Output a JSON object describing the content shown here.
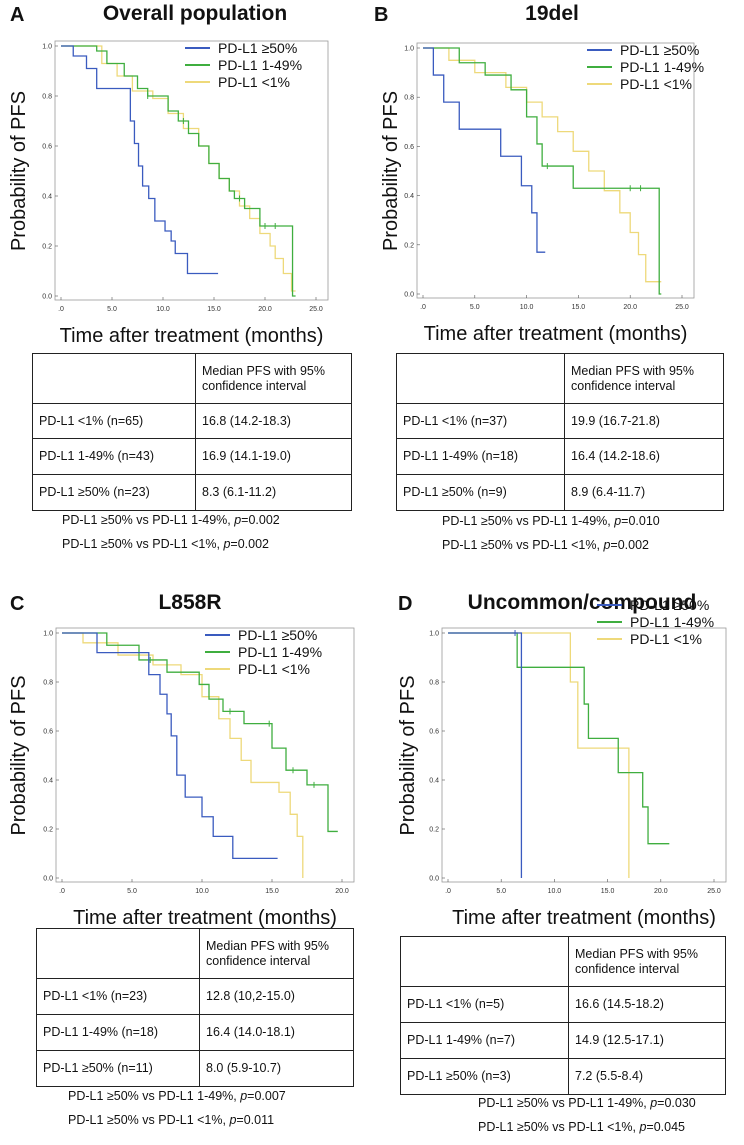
{
  "colors": {
    "high": "#3a5bbf",
    "mid": "#3fae3f",
    "low": "#eed97a",
    "axis": "#555555"
  },
  "common": {
    "ylabel": "Probability of PFS",
    "xlabel": "Time after treatment (months)",
    "table_header": "Median PFS  with 95% confidence interval",
    "table_header_line1": "Median PFS  with 95%",
    "table_header_line2": "confidence interval",
    "p_suffix_label": "p"
  },
  "panels": {
    "A": {
      "letter": "A",
      "title": "Overall population",
      "rows": [
        {
          "group": "PD-L1 <1% (n=65)",
          "median": "16.8 (14.2-18.3)"
        },
        {
          "group": "PD-L1 1-49% (n=43)",
          "median": "16.9 (14.1-19.0)"
        },
        {
          "group": "PD-L1 ≥50% (n=23)",
          "median": "8.3 (6.1-11.2)"
        }
      ],
      "pvalues": [
        {
          "prefix": "PD-L1 ≥50% vs PD-L1 1-49%, ",
          "value": "=0.002"
        },
        {
          "prefix": "PD-L1 ≥50% vs PD-L1 <1%, ",
          "value": "=0.002"
        }
      ]
    },
    "B": {
      "letter": "B",
      "title": "19del",
      "rows": [
        {
          "group": "PD-L1 <1% (n=37)",
          "median": "19.9 (16.7-21.8)"
        },
        {
          "group": "PD-L1 1-49% (n=18)",
          "median": "16.4 (14.2-18.6)"
        },
        {
          "group": "PD-L1 ≥50% (n=9)",
          "median": "8.9 (6.4-11.7)"
        }
      ],
      "pvalues": [
        {
          "prefix": "PD-L1 ≥50% vs PD-L1 1-49%, ",
          "value": "=0.010"
        },
        {
          "prefix": "PD-L1 ≥50% vs PD-L1 <1%, ",
          "value": "=0.002"
        }
      ]
    },
    "C": {
      "letter": "C",
      "title": "L858R",
      "rows": [
        {
          "group": "PD-L1 <1% (n=23)",
          "median": "12.8 (10,2-15.0)"
        },
        {
          "group": "PD-L1 1-49% (n=18)",
          "median": "16.4 (14.0-18.1)"
        },
        {
          "group": "PD-L1 ≥50% (n=11)",
          "median": "8.0 (5.9-10.7)"
        }
      ],
      "pvalues": [
        {
          "prefix": "PD-L1 ≥50% vs PD-L1 1-49%, ",
          "value": "=0.007"
        },
        {
          "prefix": "PD-L1 ≥50% vs PD-L1 <1%, ",
          "value": "=0.011"
        }
      ]
    },
    "D": {
      "letter": "D",
      "title": "Uncommon/compound",
      "rows": [
        {
          "group": "PD-L1 <1% (n=5)",
          "median": "16.6 (14.5-18.2)"
        },
        {
          "group": "PD-L1 1-49% (n=7)",
          "median": "14.9 (12.5-17.1)"
        },
        {
          "group": "PD-L1 ≥50% (n=3)",
          "median": "7.2 (5.5-8.4)"
        }
      ],
      "pvalues": [
        {
          "prefix": "PD-L1 ≥50% vs PD-L1 1-49%, ",
          "value": "=0.030"
        },
        {
          "prefix": "PD-L1 ≥50% vs PD-L1 <1%, ",
          "value": "=0.045"
        }
      ]
    }
  },
  "chart_data": [
    {
      "panel": "A",
      "type": "line",
      "step": true,
      "title": "Overall population",
      "xlabel": "Time after treatment (months)",
      "ylabel": "Probability of PFS",
      "xlim": [
        0,
        25
      ],
      "ylim": [
        0,
        1
      ],
      "xticks": [
        ".0",
        "5.0",
        "10.0",
        "15.0",
        "20.0",
        "25.0"
      ],
      "yticks": [
        "0.0",
        "0.2",
        "0.4",
        "0.6",
        "0.8",
        "1.0"
      ],
      "legend": [
        "PD-L1 ≥50%",
        "PD-L1 1-49%",
        "PD-L1 <1%"
      ],
      "series": [
        {
          "name": "PD-L1 ≥50%",
          "color": "#3a5bbf",
          "x": [
            0,
            1.2,
            2.5,
            3.5,
            6.2,
            6.8,
            7.2,
            7.6,
            8.0,
            8.6,
            9.2,
            10.2,
            10.8,
            11.2,
            12.4,
            15.4
          ],
          "y": [
            1,
            0.96,
            0.91,
            0.83,
            0.83,
            0.7,
            0.61,
            0.52,
            0.44,
            0.39,
            0.3,
            0.26,
            0.22,
            0.17,
            0.09,
            0.09
          ]
        },
        {
          "name": "PD-L1 1-49%",
          "color": "#3fae3f",
          "x": [
            0,
            3.5,
            4.5,
            6.2,
            7.5,
            8.5,
            10.5,
            11.5,
            12.5,
            13.5,
            14.5,
            15.5,
            16.5,
            17.0,
            18.0,
            19.5,
            20.5,
            22.7,
            23.0
          ],
          "y": [
            1,
            0.98,
            0.93,
            0.88,
            0.83,
            0.8,
            0.74,
            0.7,
            0.65,
            0.6,
            0.53,
            0.47,
            0.42,
            0.39,
            0.35,
            0.28,
            0.28,
            0.0,
            0.0
          ],
          "censored_x": [
            8.5,
            12.0,
            17.5,
            20.0,
            21.0
          ]
        },
        {
          "name": "PD-L1 <1%",
          "color": "#eed97a",
          "x": [
            0,
            4.0,
            5.5,
            7.0,
            9.0,
            10.5,
            12.0,
            13.5,
            14.5,
            15.5,
            16.5,
            17.5,
            18.5,
            19.5,
            20.5,
            21.0,
            21.8,
            22.6,
            23.0
          ],
          "y": [
            1,
            0.93,
            0.88,
            0.82,
            0.79,
            0.73,
            0.67,
            0.6,
            0.53,
            0.47,
            0.42,
            0.36,
            0.31,
            0.25,
            0.2,
            0.15,
            0.09,
            0.02,
            0.02
          ]
        }
      ]
    },
    {
      "panel": "B",
      "type": "line",
      "step": true,
      "title": "19del",
      "xlabel": "Time after treatment (months)",
      "ylabel": "Probability of PFS",
      "xlim": [
        0,
        25
      ],
      "ylim": [
        0,
        1
      ],
      "xticks": [
        ".0",
        "5.0",
        "10.0",
        "15.0",
        "20.0",
        "25.0"
      ],
      "yticks": [
        "0.0",
        "0.2",
        "0.4",
        "0.6",
        "0.8",
        "1.0"
      ],
      "legend": [
        "PD-L1 ≥50%",
        "PD-L1 1-49%",
        "PD-L1 <1%"
      ],
      "series": [
        {
          "name": "PD-L1 ≥50%",
          "color": "#3a5bbf",
          "x": [
            0,
            1.0,
            2.0,
            3.5,
            7.5,
            9.5,
            10.5,
            11.0,
            11.8
          ],
          "y": [
            1,
            0.89,
            0.78,
            0.67,
            0.56,
            0.44,
            0.33,
            0.17,
            0.17
          ]
        },
        {
          "name": "PD-L1 1-49%",
          "color": "#3fae3f",
          "x": [
            0,
            3.5,
            6.0,
            8.5,
            10.0,
            11.0,
            11.5,
            14.5,
            22.8,
            23.0
          ],
          "y": [
            1,
            0.94,
            0.89,
            0.83,
            0.72,
            0.61,
            0.52,
            0.43,
            0.0,
            0.0
          ],
          "censored_x": [
            12.0,
            20.0,
            21.0
          ]
        },
        {
          "name": "PD-L1 <1%",
          "color": "#eed97a",
          "x": [
            0,
            2.5,
            5.0,
            8.0,
            10.0,
            11.5,
            13.0,
            14.5,
            16.0,
            17.5,
            19.0,
            20.0,
            20.8,
            21.5,
            23.0
          ],
          "y": [
            1,
            0.95,
            0.9,
            0.84,
            0.78,
            0.72,
            0.66,
            0.58,
            0.5,
            0.42,
            0.33,
            0.25,
            0.16,
            0.05,
            0.05
          ]
        }
      ]
    },
    {
      "panel": "C",
      "type": "line",
      "step": true,
      "title": "L858R",
      "xlabel": "Time after treatment (months)",
      "ylabel": "Probability of PFS",
      "xlim": [
        0,
        20
      ],
      "ylim": [
        0,
        1
      ],
      "xticks": [
        ".0",
        "5.0",
        "10.0",
        "15.0",
        "20.0"
      ],
      "yticks": [
        "0.0",
        "0.2",
        "0.4",
        "0.6",
        "0.8",
        "1.0"
      ],
      "legend": [
        "PD-L1 ≥50%",
        "PD-L1 1-49%",
        "PD-L1 <1%"
      ],
      "series": [
        {
          "name": "PD-L1 ≥50%",
          "color": "#3a5bbf",
          "x": [
            0,
            2.5,
            5.2,
            6.2,
            7.0,
            7.5,
            7.8,
            8.2,
            8.8,
            10.0,
            10.8,
            12.2,
            15.4
          ],
          "y": [
            1,
            0.92,
            0.92,
            0.83,
            0.75,
            0.67,
            0.58,
            0.42,
            0.33,
            0.25,
            0.17,
            0.08,
            0.08
          ]
        },
        {
          "name": "PD-L1 1-49%",
          "color": "#3fae3f",
          "x": [
            0,
            3.2,
            5.5,
            7.5,
            9.8,
            10.5,
            11.5,
            13.0,
            15.0,
            16.0,
            17.5,
            19.0,
            19.7
          ],
          "y": [
            1,
            0.95,
            0.89,
            0.84,
            0.79,
            0.73,
            0.68,
            0.63,
            0.53,
            0.44,
            0.38,
            0.19,
            0.19
          ],
          "censored_x": [
            6.3,
            12.0,
            14.8,
            16.5,
            18.0
          ]
        },
        {
          "name": "PD-L1 <1%",
          "color": "#eed97a",
          "x": [
            0,
            1.5,
            4.0,
            6.5,
            8.5,
            10.0,
            11.2,
            12.0,
            12.8,
            13.5,
            15.5,
            16.3,
            16.8,
            17.2
          ],
          "y": [
            1,
            0.96,
            0.91,
            0.87,
            0.83,
            0.74,
            0.65,
            0.57,
            0.48,
            0.39,
            0.35,
            0.26,
            0.17,
            0.0
          ]
        }
      ]
    },
    {
      "panel": "D",
      "type": "line",
      "step": true,
      "title": "Uncommon/compound",
      "xlabel": "Time after treatment (months)",
      "ylabel": "Probability of PFS",
      "xlim": [
        0,
        25
      ],
      "ylim": [
        0,
        1
      ],
      "xticks": [
        ".0",
        "5.0",
        "10.0",
        "15.0",
        "20.0",
        "25.0"
      ],
      "yticks": [
        "0.0",
        "0.2",
        "0.4",
        "0.6",
        "0.8",
        "1.0"
      ],
      "legend": [
        "PD-L1 ≥50%",
        "PD-L1 1-49%",
        "PD-L1 <1%"
      ],
      "series": [
        {
          "name": "PD-L1 ≥50%",
          "color": "#3a5bbf",
          "x": [
            0,
            6.9,
            6.9
          ],
          "y": [
            1,
            1,
            0.0
          ],
          "censored_x": [
            6.3
          ]
        },
        {
          "name": "PD-L1 1-49%",
          "color": "#3fae3f",
          "x": [
            0,
            5.0,
            6.5,
            12.8,
            13.2,
            16.0,
            18.3,
            18.8,
            20.8
          ],
          "y": [
            1,
            1,
            0.86,
            0.71,
            0.57,
            0.43,
            0.29,
            0.14,
            0.14
          ]
        },
        {
          "name": "PD-L1 <1%",
          "color": "#eed97a",
          "x": [
            0,
            8.0,
            11.5,
            12.2,
            15.5,
            17.0
          ],
          "y": [
            1,
            1,
            0.8,
            0.53,
            0.53,
            0.0
          ]
        }
      ]
    }
  ]
}
